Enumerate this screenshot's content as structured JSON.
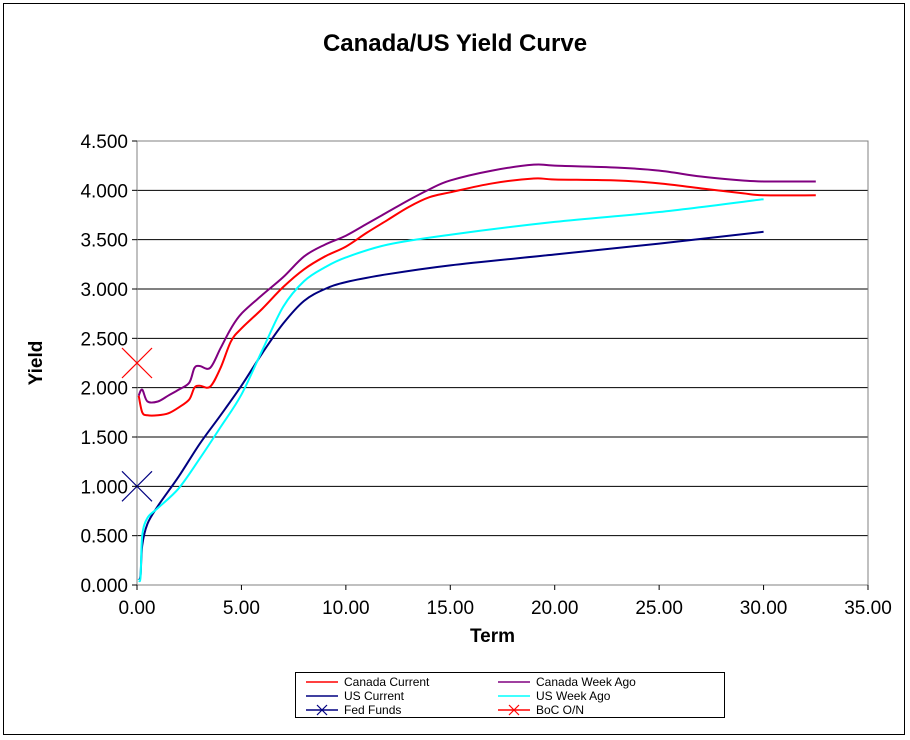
{
  "chart_data": {
    "type": "line",
    "title": "Canada/US Yield Curve",
    "xlabel": "Term",
    "ylabel": "Yield",
    "xlim": [
      0,
      35
    ],
    "ylim": [
      0,
      4.5
    ],
    "x_ticks": [
      "0.00",
      "5.00",
      "10.00",
      "15.00",
      "20.00",
      "25.00",
      "30.00",
      "35.00"
    ],
    "y_ticks": [
      "0.000",
      "0.500",
      "1.000",
      "1.500",
      "2.000",
      "2.500",
      "3.000",
      "3.500",
      "4.000",
      "4.500"
    ],
    "grid": "horizontal",
    "legend_position": "bottom",
    "series": [
      {
        "name": "Canada Current",
        "color": "#ff0000",
        "marker": "none",
        "points": [
          [
            0.08,
            1.92
          ],
          [
            0.25,
            1.75
          ],
          [
            0.5,
            1.72
          ],
          [
            1.0,
            1.72
          ],
          [
            1.5,
            1.74
          ],
          [
            2.0,
            1.8
          ],
          [
            2.5,
            1.88
          ],
          [
            2.75,
            2.0
          ],
          [
            3.0,
            2.02
          ],
          [
            3.5,
            2.01
          ],
          [
            4.0,
            2.2
          ],
          [
            4.5,
            2.47
          ],
          [
            5.0,
            2.6
          ],
          [
            6.0,
            2.8
          ],
          [
            7.0,
            3.02
          ],
          [
            8.0,
            3.2
          ],
          [
            9.0,
            3.33
          ],
          [
            10.0,
            3.43
          ],
          [
            11.0,
            3.57
          ],
          [
            12.0,
            3.7
          ],
          [
            13.0,
            3.83
          ],
          [
            14.0,
            3.93
          ],
          [
            15.0,
            3.98
          ],
          [
            17.0,
            4.07
          ],
          [
            19.0,
            4.12
          ],
          [
            20.0,
            4.11
          ],
          [
            23.0,
            4.1
          ],
          [
            25.0,
            4.07
          ],
          [
            27.0,
            4.02
          ],
          [
            29.0,
            3.97
          ],
          [
            30.0,
            3.95
          ],
          [
            32.5,
            3.95
          ]
        ]
      },
      {
        "name": "Canada Week Ago",
        "color": "#800080",
        "marker": "none",
        "points": [
          [
            0.08,
            1.92
          ],
          [
            0.25,
            1.98
          ],
          [
            0.5,
            1.86
          ],
          [
            1.0,
            1.86
          ],
          [
            1.5,
            1.92
          ],
          [
            2.0,
            1.98
          ],
          [
            2.5,
            2.05
          ],
          [
            2.75,
            2.2
          ],
          [
            3.0,
            2.22
          ],
          [
            3.5,
            2.2
          ],
          [
            4.0,
            2.4
          ],
          [
            4.5,
            2.6
          ],
          [
            5.0,
            2.75
          ],
          [
            6.0,
            2.94
          ],
          [
            7.0,
            3.12
          ],
          [
            8.0,
            3.33
          ],
          [
            9.0,
            3.45
          ],
          [
            10.0,
            3.54
          ],
          [
            11.0,
            3.66
          ],
          [
            12.0,
            3.78
          ],
          [
            13.0,
            3.9
          ],
          [
            14.0,
            4.01
          ],
          [
            15.0,
            4.1
          ],
          [
            17.0,
            4.2
          ],
          [
            19.0,
            4.26
          ],
          [
            20.0,
            4.25
          ],
          [
            23.0,
            4.23
          ],
          [
            25.0,
            4.2
          ],
          [
            27.0,
            4.14
          ],
          [
            29.0,
            4.1
          ],
          [
            30.0,
            4.09
          ],
          [
            32.5,
            4.09
          ]
        ]
      },
      {
        "name": "US Current",
        "color": "#000080",
        "marker": "none",
        "points": [
          [
            0.08,
            0.05
          ],
          [
            0.17,
            0.1
          ],
          [
            0.25,
            0.4
          ],
          [
            0.5,
            0.62
          ],
          [
            1.0,
            0.8
          ],
          [
            2.0,
            1.1
          ],
          [
            3.0,
            1.43
          ],
          [
            4.0,
            1.72
          ],
          [
            5.0,
            2.02
          ],
          [
            6.0,
            2.35
          ],
          [
            7.0,
            2.65
          ],
          [
            8.0,
            2.88
          ],
          [
            9.0,
            3.0
          ],
          [
            10.0,
            3.07
          ],
          [
            12.0,
            3.15
          ],
          [
            15.0,
            3.24
          ],
          [
            20.0,
            3.35
          ],
          [
            25.0,
            3.46
          ],
          [
            30.0,
            3.58
          ]
        ]
      },
      {
        "name": "US Week Ago",
        "color": "#00ffff",
        "marker": "none",
        "points": [
          [
            0.08,
            0.05
          ],
          [
            0.17,
            0.08
          ],
          [
            0.25,
            0.5
          ],
          [
            0.5,
            0.68
          ],
          [
            1.0,
            0.78
          ],
          [
            2.0,
            0.98
          ],
          [
            3.0,
            1.28
          ],
          [
            4.0,
            1.6
          ],
          [
            5.0,
            1.93
          ],
          [
            6.0,
            2.38
          ],
          [
            7.0,
            2.82
          ],
          [
            8.0,
            3.08
          ],
          [
            9.0,
            3.22
          ],
          [
            10.0,
            3.32
          ],
          [
            12.0,
            3.45
          ],
          [
            15.0,
            3.55
          ],
          [
            20.0,
            3.68
          ],
          [
            25.0,
            3.78
          ],
          [
            30.0,
            3.91
          ]
        ]
      },
      {
        "name": "Fed Funds",
        "color": "#000080",
        "marker": "x",
        "points": [
          [
            0.0,
            1.0
          ]
        ]
      },
      {
        "name": "BoC O/N",
        "color": "#ff0000",
        "marker": "x",
        "points": [
          [
            0.0,
            2.25
          ]
        ]
      }
    ]
  }
}
